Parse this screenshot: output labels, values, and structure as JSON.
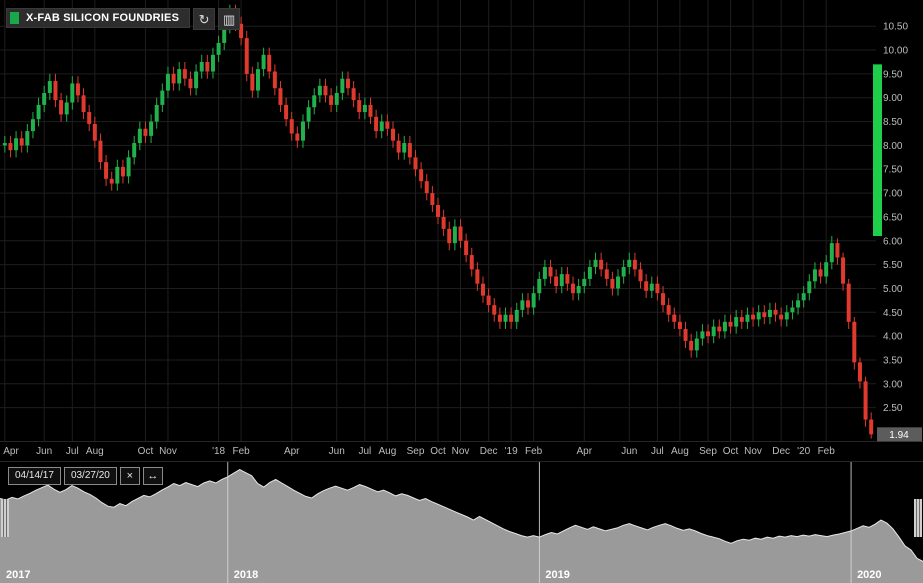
{
  "header": {
    "symbol": "X-FAB SILICON FOUNDRIES",
    "accent_color": "#17a94a"
  },
  "toolbar": {
    "refresh_icon": "↻",
    "interval_icon": "▥"
  },
  "chart_data": {
    "type": "candlestick",
    "title": "X-FAB SILICON FOUNDRIES",
    "visible_range": [
      "04/14/17",
      "03/27/20"
    ],
    "last_price": "1.94",
    "last_price_value": 1.94,
    "y_axis": {
      "min": 1.8,
      "max": 11.05,
      "tick_labels": [
        "10.50",
        "10.00",
        "9.50",
        "9.00",
        "8.50",
        "8.00",
        "7.50",
        "7.00",
        "6.50",
        "6.00",
        "5.50",
        "5.00",
        "4.50",
        "4.00",
        "3.50",
        "3.00",
        "2.50"
      ]
    },
    "x_labels": [
      {
        "label": "Apr",
        "i": 0
      },
      {
        "label": "Jun",
        "i": 7
      },
      {
        "label": "Jul",
        "i": 12
      },
      {
        "label": "Aug",
        "i": 16
      },
      {
        "label": "Oct",
        "i": 25
      },
      {
        "label": "Nov",
        "i": 29
      },
      {
        "label": "'18",
        "i": 38
      },
      {
        "label": "Feb",
        "i": 42
      },
      {
        "label": "Apr",
        "i": 51
      },
      {
        "label": "Jun",
        "i": 59
      },
      {
        "label": "Jul",
        "i": 64
      },
      {
        "label": "Aug",
        "i": 68
      },
      {
        "label": "Sep",
        "i": 73
      },
      {
        "label": "Oct",
        "i": 77
      },
      {
        "label": "Nov",
        "i": 81
      },
      {
        "label": "Dec",
        "i": 86
      },
      {
        "label": "'19",
        "i": 90
      },
      {
        "label": "Feb",
        "i": 94
      },
      {
        "label": "Apr",
        "i": 103
      },
      {
        "label": "Jun",
        "i": 111
      },
      {
        "label": "Jul",
        "i": 116
      },
      {
        "label": "Aug",
        "i": 120
      },
      {
        "label": "Sep",
        "i": 125
      },
      {
        "label": "Oct",
        "i": 129
      },
      {
        "label": "Nov",
        "i": 133
      },
      {
        "label": "Dec",
        "i": 138
      },
      {
        "label": "'20",
        "i": 142
      },
      {
        "label": "Feb",
        "i": 146
      }
    ],
    "right_edge_bar": {
      "high": 9.7,
      "low": 6.1,
      "color": "#1fcf4c"
    },
    "colors": {
      "up": "#22b14c",
      "down": "#e03a2f",
      "grid": "#1e1e1e",
      "axis_text": "#bdbdbd",
      "last_price_bg": "#5c5c5c",
      "background": "#000000"
    },
    "candles": [
      [
        8.0,
        8.2,
        7.85,
        8.05
      ],
      [
        8.05,
        8.2,
        7.75,
        7.9
      ],
      [
        7.9,
        8.3,
        7.75,
        8.15
      ],
      [
        8.15,
        8.3,
        7.85,
        8.0
      ],
      [
        8.0,
        8.45,
        7.85,
        8.3
      ],
      [
        8.3,
        8.7,
        8.15,
        8.55
      ],
      [
        8.55,
        9.0,
        8.4,
        8.85
      ],
      [
        8.85,
        9.25,
        8.7,
        9.1
      ],
      [
        9.1,
        9.5,
        8.95,
        9.35
      ],
      [
        9.35,
        9.5,
        8.8,
        8.95
      ],
      [
        8.95,
        9.1,
        8.5,
        8.65
      ],
      [
        8.65,
        9.05,
        8.5,
        8.9
      ],
      [
        8.9,
        9.45,
        8.75,
        9.3
      ],
      [
        9.3,
        9.45,
        8.9,
        9.05
      ],
      [
        9.05,
        9.2,
        8.55,
        8.7
      ],
      [
        8.7,
        8.85,
        8.3,
        8.45
      ],
      [
        8.45,
        8.6,
        7.95,
        8.1
      ],
      [
        8.1,
        8.25,
        7.5,
        7.65
      ],
      [
        7.65,
        7.8,
        7.15,
        7.3
      ],
      [
        7.3,
        7.45,
        7.05,
        7.2
      ],
      [
        7.2,
        7.7,
        7.05,
        7.55
      ],
      [
        7.55,
        7.7,
        7.2,
        7.35
      ],
      [
        7.35,
        7.9,
        7.2,
        7.75
      ],
      [
        7.75,
        8.2,
        7.6,
        8.05
      ],
      [
        8.05,
        8.5,
        7.9,
        8.35
      ],
      [
        8.35,
        8.5,
        8.05,
        8.2
      ],
      [
        8.2,
        8.65,
        8.05,
        8.5
      ],
      [
        8.5,
        9.0,
        8.35,
        8.85
      ],
      [
        8.85,
        9.3,
        8.7,
        9.15
      ],
      [
        9.15,
        9.65,
        9.0,
        9.5
      ],
      [
        9.5,
        9.65,
        9.15,
        9.3
      ],
      [
        9.3,
        9.75,
        9.15,
        9.6
      ],
      [
        9.6,
        9.75,
        9.25,
        9.4
      ],
      [
        9.4,
        9.55,
        9.05,
        9.2
      ],
      [
        9.2,
        9.7,
        9.05,
        9.55
      ],
      [
        9.55,
        9.9,
        9.4,
        9.75
      ],
      [
        9.75,
        9.9,
        9.4,
        9.55
      ],
      [
        9.55,
        10.05,
        9.4,
        9.9
      ],
      [
        9.9,
        10.3,
        9.75,
        10.15
      ],
      [
        10.15,
        10.65,
        10.0,
        10.5
      ],
      [
        10.5,
        10.95,
        10.35,
        10.85
      ],
      [
        10.85,
        10.95,
        10.4,
        10.55
      ],
      [
        10.55,
        10.7,
        10.1,
        10.25
      ],
      [
        10.25,
        10.4,
        9.35,
        9.5
      ],
      [
        9.5,
        9.65,
        9.0,
        9.15
      ],
      [
        9.15,
        9.75,
        9.0,
        9.6
      ],
      [
        9.6,
        10.05,
        9.45,
        9.9
      ],
      [
        9.9,
        10.05,
        9.4,
        9.55
      ],
      [
        9.55,
        9.7,
        9.05,
        9.2
      ],
      [
        9.2,
        9.35,
        8.7,
        8.85
      ],
      [
        8.85,
        9.0,
        8.4,
        8.55
      ],
      [
        8.55,
        8.7,
        8.1,
        8.25
      ],
      [
        8.25,
        8.4,
        7.95,
        8.1
      ],
      [
        8.1,
        8.65,
        7.95,
        8.5
      ],
      [
        8.5,
        8.95,
        8.35,
        8.8
      ],
      [
        8.8,
        9.2,
        8.65,
        9.05
      ],
      [
        9.05,
        9.4,
        8.9,
        9.25
      ],
      [
        9.25,
        9.4,
        8.9,
        9.05
      ],
      [
        9.05,
        9.2,
        8.7,
        8.85
      ],
      [
        8.85,
        9.25,
        8.7,
        9.1
      ],
      [
        9.1,
        9.55,
        8.95,
        9.4
      ],
      [
        9.4,
        9.55,
        9.05,
        9.2
      ],
      [
        9.2,
        9.35,
        8.8,
        8.95
      ],
      [
        8.95,
        9.1,
        8.55,
        8.7
      ],
      [
        8.7,
        9.0,
        8.55,
        8.85
      ],
      [
        8.85,
        9.0,
        8.45,
        8.6
      ],
      [
        8.6,
        8.75,
        8.15,
        8.3
      ],
      [
        8.3,
        8.65,
        8.15,
        8.5
      ],
      [
        8.5,
        8.65,
        8.2,
        8.35
      ],
      [
        8.35,
        8.5,
        7.95,
        8.1
      ],
      [
        8.1,
        8.25,
        7.7,
        7.85
      ],
      [
        7.85,
        8.2,
        7.7,
        8.05
      ],
      [
        8.05,
        8.2,
        7.6,
        7.75
      ],
      [
        7.75,
        7.9,
        7.35,
        7.5
      ],
      [
        7.5,
        7.65,
        7.1,
        7.25
      ],
      [
        7.25,
        7.4,
        6.85,
        7.0
      ],
      [
        7.0,
        7.15,
        6.6,
        6.75
      ],
      [
        6.75,
        6.9,
        6.35,
        6.5
      ],
      [
        6.5,
        6.65,
        6.1,
        6.25
      ],
      [
        6.25,
        6.4,
        5.8,
        5.95
      ],
      [
        5.95,
        6.45,
        5.8,
        6.3
      ],
      [
        6.3,
        6.45,
        5.85,
        6.0
      ],
      [
        6.0,
        6.15,
        5.55,
        5.7
      ],
      [
        5.7,
        5.85,
        5.25,
        5.4
      ],
      [
        5.4,
        5.55,
        4.95,
        5.1
      ],
      [
        5.1,
        5.25,
        4.7,
        4.85
      ],
      [
        4.85,
        5.0,
        4.5,
        4.65
      ],
      [
        4.65,
        4.8,
        4.3,
        4.45
      ],
      [
        4.45,
        4.6,
        4.15,
        4.3
      ],
      [
        4.3,
        4.6,
        4.15,
        4.45
      ],
      [
        4.45,
        4.6,
        4.15,
        4.3
      ],
      [
        4.3,
        4.7,
        4.15,
        4.55
      ],
      [
        4.55,
        4.9,
        4.4,
        4.75
      ],
      [
        4.75,
        4.9,
        4.45,
        4.6
      ],
      [
        4.6,
        5.05,
        4.45,
        4.9
      ],
      [
        4.9,
        5.35,
        4.75,
        5.2
      ],
      [
        5.2,
        5.6,
        5.05,
        5.45
      ],
      [
        5.45,
        5.6,
        5.1,
        5.25
      ],
      [
        5.25,
        5.4,
        4.9,
        5.05
      ],
      [
        5.05,
        5.45,
        4.9,
        5.3
      ],
      [
        5.3,
        5.45,
        4.95,
        5.1
      ],
      [
        5.1,
        5.25,
        4.75,
        4.9
      ],
      [
        4.9,
        5.2,
        4.75,
        5.05
      ],
      [
        5.05,
        5.35,
        4.9,
        5.2
      ],
      [
        5.2,
        5.6,
        5.05,
        5.45
      ],
      [
        5.45,
        5.75,
        5.3,
        5.6
      ],
      [
        5.6,
        5.75,
        5.25,
        5.4
      ],
      [
        5.4,
        5.55,
        5.05,
        5.2
      ],
      [
        5.2,
        5.35,
        4.85,
        5.0
      ],
      [
        5.0,
        5.4,
        4.85,
        5.25
      ],
      [
        5.25,
        5.6,
        5.1,
        5.45
      ],
      [
        5.45,
        5.75,
        5.3,
        5.6
      ],
      [
        5.6,
        5.75,
        5.25,
        5.4
      ],
      [
        5.4,
        5.55,
        5.0,
        5.15
      ],
      [
        5.15,
        5.3,
        4.8,
        4.95
      ],
      [
        4.95,
        5.25,
        4.8,
        5.1
      ],
      [
        5.1,
        5.25,
        4.75,
        4.9
      ],
      [
        4.9,
        5.05,
        4.5,
        4.65
      ],
      [
        4.65,
        4.8,
        4.3,
        4.45
      ],
      [
        4.45,
        4.6,
        4.15,
        4.3
      ],
      [
        4.3,
        4.45,
        4.0,
        4.15
      ],
      [
        4.15,
        4.3,
        3.75,
        3.9
      ],
      [
        3.9,
        4.05,
        3.55,
        3.7
      ],
      [
        3.7,
        4.1,
        3.55,
        3.95
      ],
      [
        3.95,
        4.25,
        3.8,
        4.1
      ],
      [
        4.1,
        4.25,
        3.85,
        4.0
      ],
      [
        4.0,
        4.35,
        3.85,
        4.2
      ],
      [
        4.2,
        4.35,
        3.95,
        4.1
      ],
      [
        4.1,
        4.45,
        3.95,
        4.3
      ],
      [
        4.3,
        4.45,
        4.05,
        4.2
      ],
      [
        4.2,
        4.55,
        4.05,
        4.4
      ],
      [
        4.4,
        4.55,
        4.15,
        4.3
      ],
      [
        4.3,
        4.6,
        4.15,
        4.45
      ],
      [
        4.45,
        4.6,
        4.2,
        4.35
      ],
      [
        4.35,
        4.65,
        4.2,
        4.5
      ],
      [
        4.5,
        4.65,
        4.25,
        4.4
      ],
      [
        4.4,
        4.7,
        4.25,
        4.55
      ],
      [
        4.55,
        4.7,
        4.3,
        4.45
      ],
      [
        4.45,
        4.6,
        4.2,
        4.35
      ],
      [
        4.35,
        4.65,
        4.2,
        4.5
      ],
      [
        4.5,
        4.75,
        4.35,
        4.6
      ],
      [
        4.6,
        4.9,
        4.45,
        4.75
      ],
      [
        4.75,
        5.05,
        4.6,
        4.9
      ],
      [
        4.9,
        5.3,
        4.75,
        5.15
      ],
      [
        5.15,
        5.55,
        5.0,
        5.4
      ],
      [
        5.4,
        5.55,
        5.1,
        5.25
      ],
      [
        5.25,
        5.7,
        5.1,
        5.55
      ],
      [
        5.55,
        6.1,
        5.4,
        5.95
      ],
      [
        5.95,
        6.05,
        5.5,
        5.65
      ],
      [
        5.65,
        5.75,
        4.95,
        5.1
      ],
      [
        5.1,
        5.2,
        4.15,
        4.3
      ],
      [
        4.3,
        4.4,
        3.3,
        3.45
      ],
      [
        3.45,
        3.55,
        2.9,
        3.05
      ],
      [
        3.05,
        3.15,
        2.1,
        2.25
      ],
      [
        2.25,
        2.4,
        1.85,
        1.94
      ]
    ]
  },
  "navigator": {
    "start_date": "04/14/17",
    "end_date": "03/27/20",
    "close_icon": "×",
    "fit_icon": "↔",
    "area_color": "#9a9a9a",
    "line_color": "#e8e8e8",
    "years": [
      {
        "label": "2017",
        "i": 0
      },
      {
        "label": "2018",
        "i": 38
      },
      {
        "label": "2019",
        "i": 90
      },
      {
        "label": "2020",
        "i": 142
      }
    ]
  }
}
